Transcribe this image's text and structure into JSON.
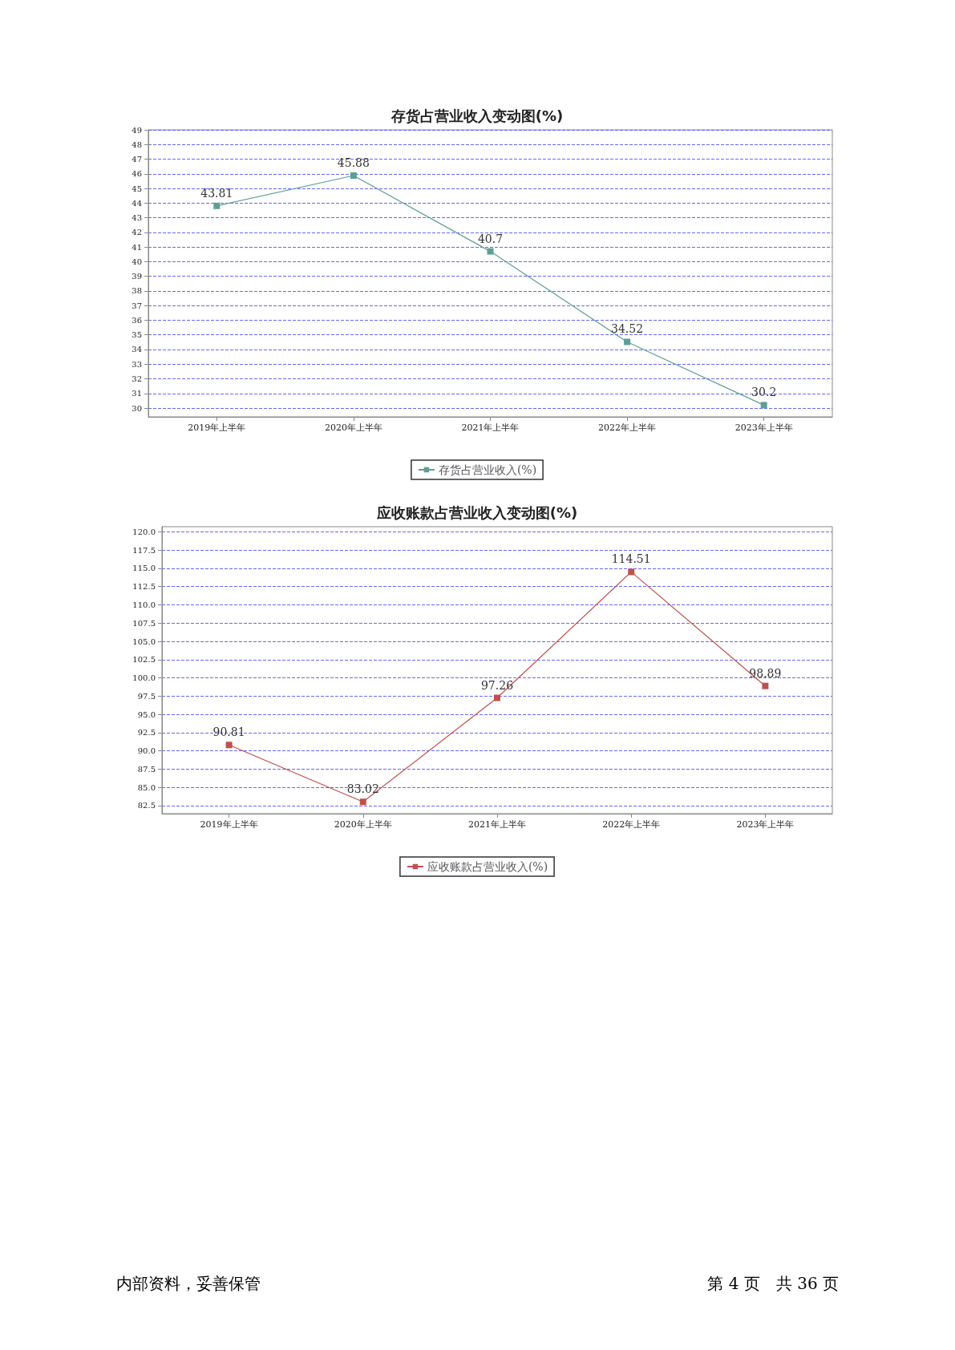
{
  "chart_data": [
    {
      "type": "line",
      "title": "存货占营业收入变动图(%)",
      "categories": [
        "2019年上半年",
        "2020年上半年",
        "2021年上半年",
        "2022年上半年",
        "2023年上半年"
      ],
      "series": [
        {
          "name": "存货占营业收入(%)",
          "color": "#5f9e96",
          "values": [
            43.81,
            45.88,
            40.7,
            34.52,
            30.2
          ]
        }
      ],
      "ylim": [
        29.4,
        49
      ],
      "yticks": [
        30,
        31,
        32,
        33,
        34,
        35,
        36,
        37,
        38,
        39,
        40,
        41,
        42,
        43,
        44,
        45,
        46,
        47,
        48,
        49
      ],
      "grid": "y",
      "legend": "bottom",
      "marker": "square",
      "line_style": "solid",
      "data_labels": true
    },
    {
      "type": "line",
      "title": "应收账款占营业收入变动图(%)",
      "categories": [
        "2019年上半年",
        "2020年上半年",
        "2021年上半年",
        "2022年上半年",
        "2023年上半年"
      ],
      "series": [
        {
          "name": "应收账款占营业收入(%)",
          "color": "#c0504d",
          "values": [
            90.81,
            83.02,
            97.26,
            114.51,
            98.89
          ]
        }
      ],
      "ylim": [
        81.4,
        120.7
      ],
      "yticks": [
        {
          "value": 82.5,
          "label": "82.5"
        },
        {
          "value": 85,
          "label": "85.0"
        },
        {
          "value": 87.5,
          "label": "87.5"
        },
        {
          "value": 90,
          "label": "90.0"
        },
        {
          "value": 92.5,
          "label": "92.5"
        },
        {
          "value": 95,
          "label": "95.0"
        },
        {
          "value": 97.5,
          "label": "97.5"
        },
        {
          "value": 100,
          "label": "100.0"
        },
        {
          "value": 102.5,
          "label": "102.5"
        },
        {
          "value": 105,
          "label": "105.0"
        },
        {
          "value": 107.5,
          "label": "107.5"
        },
        {
          "value": 110,
          "label": "110.0"
        },
        {
          "value": 112.5,
          "label": "112.5"
        },
        {
          "value": 115,
          "label": "115.0"
        },
        {
          "value": 117.5,
          "label": "117.5"
        },
        {
          "value": 120,
          "label": "120.0"
        }
      ],
      "grid": "y",
      "legend": "bottom",
      "marker": "square",
      "line_style": "solid",
      "data_labels": true,
      "annotations": [
        "内部资料，妥善保管",
        "第 4 页　共 36 页"
      ]
    }
  ]
}
